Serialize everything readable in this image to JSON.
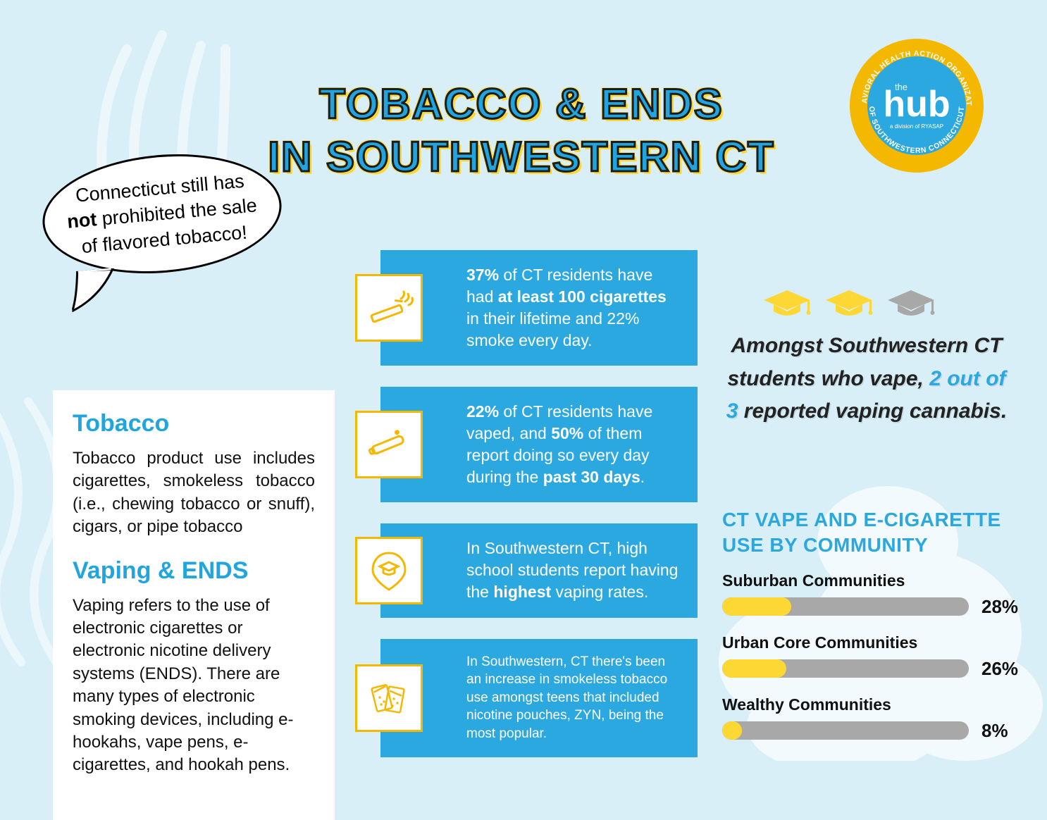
{
  "colors": {
    "background": "#d9eff8",
    "accent_blue": "#2ba8e0",
    "title_blue": "#20a5df",
    "yellow": "#fdd835",
    "gold": "#f5b800",
    "grey": "#a8a8a8",
    "text": "#111111",
    "white": "#ffffff"
  },
  "title": {
    "line1": "TOBACCO & ENDS",
    "line2": "IN SOUTHWESTERN CT",
    "fontsize": 60
  },
  "logo": {
    "the": "the",
    "main": "hub",
    "sub": "a division of RYASAP",
    "ring_top": "BEHAVIORAL HEALTH ACTION ORGANIZATION",
    "ring_bottom": "OF SOUTHWESTERN CONNECTICUT"
  },
  "bubble": {
    "pre": "Connecticut still has ",
    "bold": "not",
    "post": " prohibited the sale of flavored tobacco!"
  },
  "defs": {
    "tobacco_h": "Tobacco",
    "tobacco_p": "Tobacco product use includes cigarettes, smokeless tobacco (i.e., chewing tobacco or snuff), cigars, or pipe tobacco",
    "vaping_h": "Vaping & ENDS",
    "vaping_p": "Vaping refers to the use of electronic cigarettes or electronic nicotine delivery systems (ENDS). There are many types of electronic smoking devices, including e-hookahs, vape pens, e-cigarettes, and hookah pens."
  },
  "stats": [
    {
      "icon": "cigarette-icon",
      "html": "<b>37%</b> of CT residents have had <b>at least 100 cigarettes</b> in their lifetime and 22% smoke every day."
    },
    {
      "icon": "vape-pen-icon",
      "html": "<b>22%</b> of CT residents have vaped, and <b>50%</b> of them report doing so every day during the <b>past 30 days</b>."
    },
    {
      "icon": "school-pin-icon",
      "html": "In Southwestern CT, high school students report having the <b>highest</b> vaping rates."
    },
    {
      "icon": "pouch-icon",
      "small": true,
      "html": "In Southwestern, CT there's been an increase in smokeless tobacco use amongst teens  that included nicotine pouches, ZYN, being  the most popular."
    }
  ],
  "caps": {
    "filled": 2,
    "total": 3,
    "fill_color": "#fdd835",
    "empty_color": "#a8a8a8",
    "text_pre": "Amongst Southwestern CT students who vape, ",
    "text_highlight": "2 out of 3",
    "text_post": " reported vaping cannabis."
  },
  "chart": {
    "title": "CT VAPE AND E-CIGARETTE USE BY COMMUNITY",
    "track_width": 350,
    "track_height": 26,
    "track_color": "#a8a8a8",
    "fill_color": "#fdd835",
    "max_pct": 100,
    "bars": [
      {
        "label": "Suburban Communities",
        "value": 28,
        "display": "28%"
      },
      {
        "label": "Urban Core Communities",
        "value": 26,
        "display": "26%"
      },
      {
        "label": "Wealthy Communities",
        "value": 8,
        "display": "8%"
      }
    ]
  }
}
